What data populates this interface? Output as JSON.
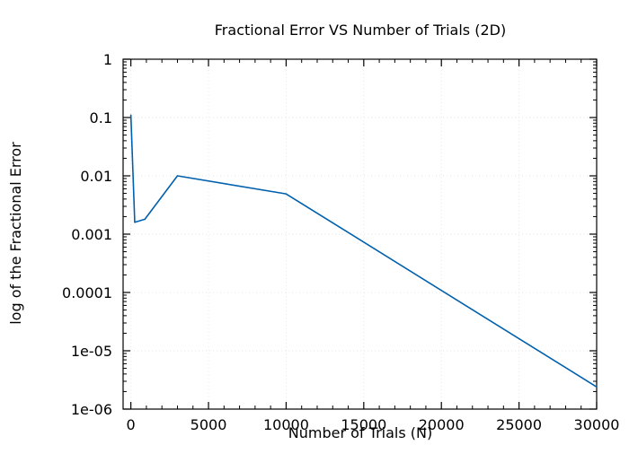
{
  "chart_data": {
    "type": "line",
    "title": "Fractional Error VS Number of Trials (2D)",
    "xlabel": "Number of Trials (N)",
    "ylabel": "log of the Fractional Error",
    "xlim": [
      -500,
      30000
    ],
    "ylim": [
      1e-06,
      1
    ],
    "y_scale": "log",
    "grid": true,
    "x_ticks": [
      0,
      5000,
      10000,
      15000,
      20000,
      25000,
      30000
    ],
    "x_tick_labels": [
      "0",
      "5000",
      "10000",
      "15000",
      "20000",
      "25000",
      "30000"
    ],
    "y_ticks": [
      1,
      0.1,
      0.01,
      0.001,
      0.0001,
      1e-05,
      1e-06
    ],
    "y_tick_labels": [
      "1",
      "0.1",
      "0.01",
      "0.001",
      "0.0001",
      "1e-05",
      "1e-06"
    ],
    "series": [
      {
        "color": "#0060ad",
        "x": [
          0,
          250,
          900,
          3000,
          10000,
          30000
        ],
        "y": [
          0.11,
          0.0016,
          0.0018,
          0.01,
          0.0049,
          2.4e-06
        ]
      }
    ]
  }
}
